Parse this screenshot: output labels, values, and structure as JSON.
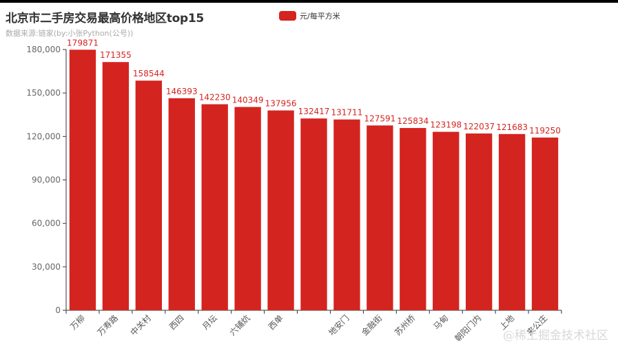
{
  "title": "北京市二手房交易最高价格地区top15",
  "subtitle": "数据来源:链家(by:小张Python(公号))",
  "legend": {
    "label": "元/每平方米",
    "color": "#d42420"
  },
  "watermark": "@稀土掘金技术社区",
  "colors": {
    "bar": "#d42420",
    "label": "#d42420",
    "axis": "#333333",
    "tick_text": "#666666"
  },
  "chart_data": {
    "type": "bar",
    "title": "北京市二手房交易最高价格地区top15",
    "subtitle": "数据来源:链家(by:小张Python(公号))",
    "xlabel": "",
    "ylabel": "",
    "categories": [
      "万柳",
      "万寿路",
      "中关村",
      "西四",
      "月坛",
      "六铺炕",
      "西单",
      "",
      "地安门",
      "金融街",
      "苏州桥",
      "马甸",
      "朝阳门内",
      "上地",
      "来公庄"
    ],
    "series": [
      {
        "name": "元/每平方米",
        "values": [
          179871,
          171355,
          158544,
          146393,
          142230,
          140349,
          137956,
          132417,
          131711,
          127591,
          125834,
          123198,
          122037,
          121683,
          119250
        ]
      }
    ],
    "ylim": [
      0,
      180000
    ],
    "yticks": [
      "0",
      "30,000",
      "60,000",
      "90,000",
      "120,000",
      "150,000",
      "180,000"
    ],
    "grid": false,
    "legend_position": "top-center",
    "label_rotation": 45
  }
}
